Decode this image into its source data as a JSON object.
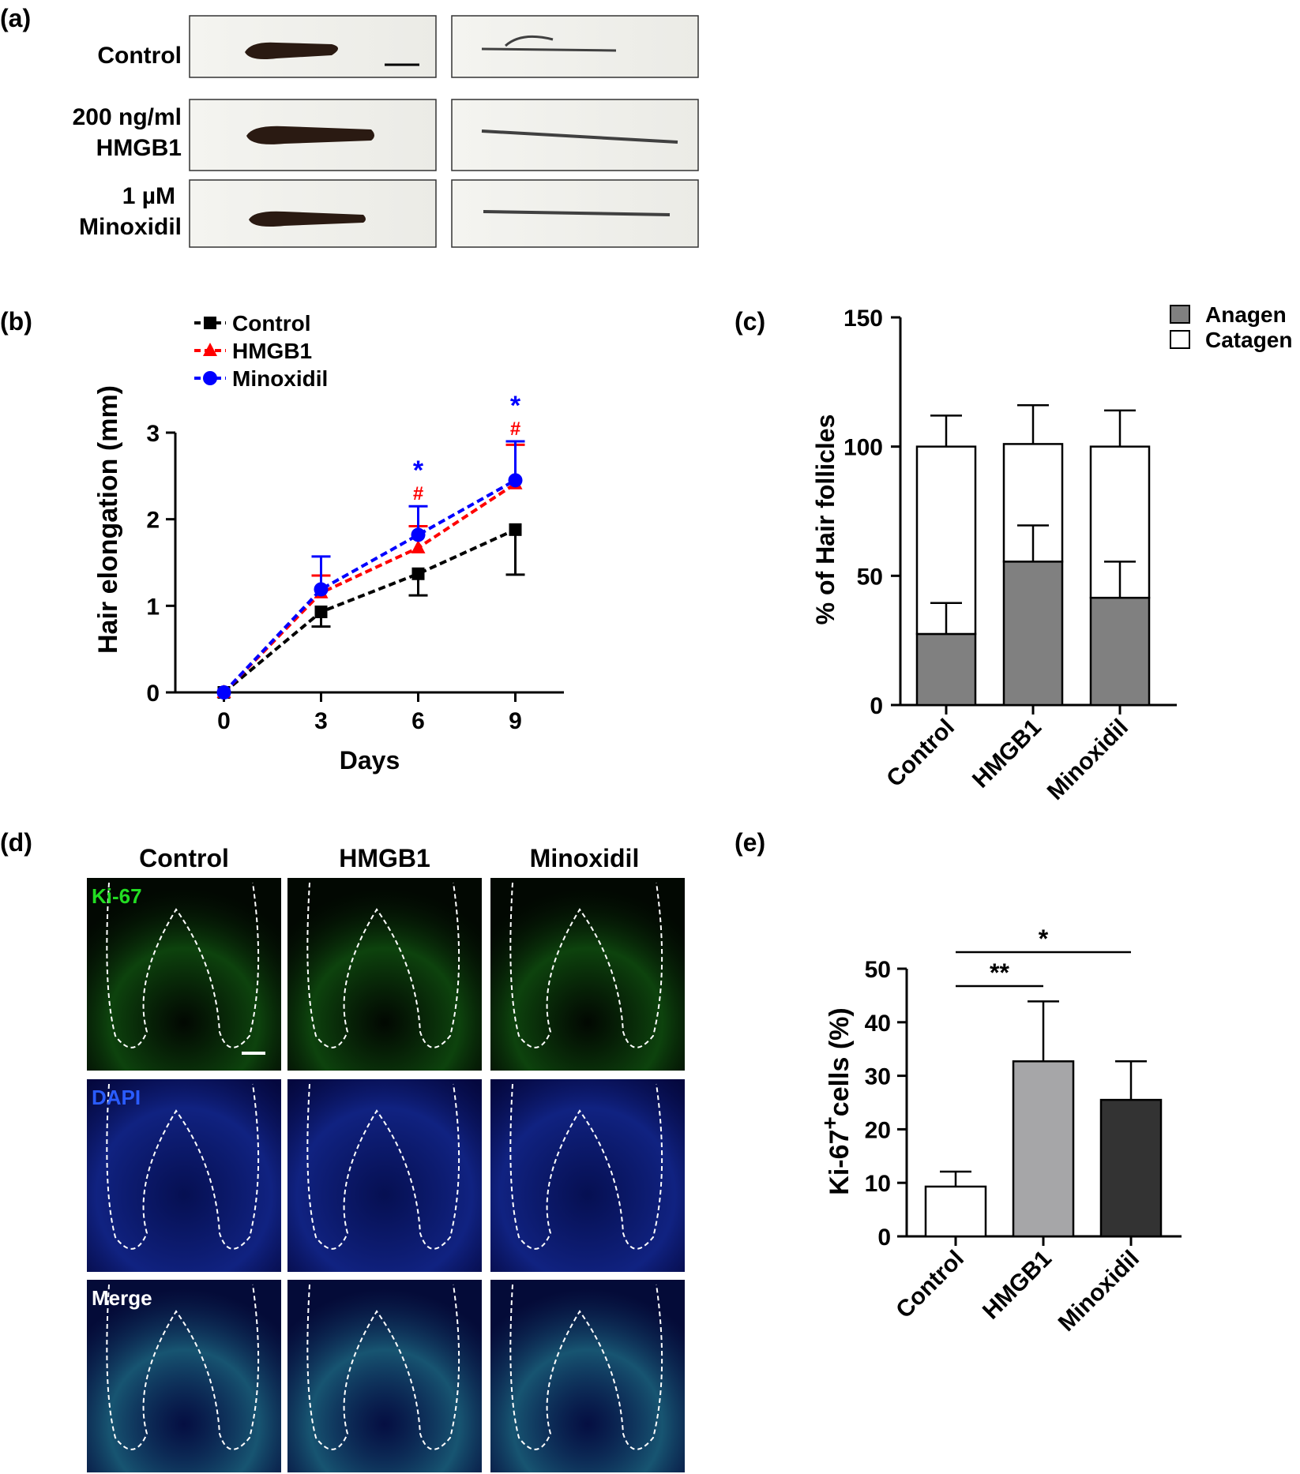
{
  "panels": {
    "a": {
      "label": "(a)",
      "rows": [
        {
          "line1": "Control",
          "line2": ""
        },
        {
          "line1": "200 ng/ml",
          "line2": "HMGB1"
        },
        {
          "line1": "1 µM",
          "line2": "Minoxidil"
        }
      ]
    },
    "b": {
      "label": "(b)"
    },
    "c": {
      "label": "(c)"
    },
    "d": {
      "label": "(d)",
      "columns": [
        "Control",
        "HMGB1",
        "Minoxidil"
      ],
      "stains": [
        {
          "name": "Ki-67",
          "color": "#22dd22"
        },
        {
          "name": "DAPI",
          "color": "#2a5cff"
        },
        {
          "name": "Merge",
          "color": "#ffffff"
        }
      ]
    },
    "e": {
      "label": "(e)"
    }
  },
  "colors": {
    "control": "#000000",
    "hmgb1": "#ff0000",
    "minoxidil": "#0000ff",
    "anagen": "#808080",
    "catagen": "#ffffff",
    "ki67_control": "#ffffff",
    "ki67_hmgb1": "#a6a6a8",
    "ki67_minoxidil": "#333333"
  },
  "chart_data": [
    {
      "id": "b",
      "type": "line",
      "xlabel": "Days",
      "ylabel": "Hair elongation (mm)",
      "x": [
        0,
        3,
        6,
        9
      ],
      "xticks": [
        "0",
        "3",
        "6",
        "9"
      ],
      "yticks": [
        "0",
        "1",
        "2",
        "3"
      ],
      "xlim": [
        -1.5,
        10.5
      ],
      "ylim": [
        0,
        3
      ],
      "legend_position": "top-left",
      "series": [
        {
          "name": "Control",
          "values": [
            0,
            0.93,
            1.37,
            1.88
          ],
          "errors": [
            0,
            0.17,
            0.25,
            0.52
          ],
          "marker": "square"
        },
        {
          "name": "HMGB1",
          "values": [
            0,
            1.15,
            1.67,
            2.41
          ],
          "errors": [
            0,
            0.2,
            0.25,
            0.45
          ],
          "marker": "triangle"
        },
        {
          "name": "Minoxidil",
          "values": [
            0,
            1.19,
            1.82,
            2.45
          ],
          "errors": [
            0,
            0.38,
            0.33,
            0.45
          ],
          "marker": "circle"
        }
      ],
      "annotations": [
        {
          "text": "*",
          "x": 6,
          "series": "Minoxidil"
        },
        {
          "text": "#",
          "x": 6,
          "series": "HMGB1"
        },
        {
          "text": "*",
          "x": 9,
          "series": "Minoxidil"
        },
        {
          "text": "#",
          "x": 9,
          "series": "HMGB1"
        }
      ]
    },
    {
      "id": "c",
      "type": "bar",
      "stacked": true,
      "ylabel": "% of Hair follicles",
      "categories": [
        "Control",
        "HMGB1",
        "Minoxidil"
      ],
      "yticks": [
        "0",
        "50",
        "100",
        "150"
      ],
      "ylim": [
        0,
        150
      ],
      "legend_position": "top-right",
      "series": [
        {
          "name": "Anagen",
          "values": [
            27.5,
            55.5,
            41.5
          ],
          "errors": [
            12,
            14,
            14
          ]
        },
        {
          "name": "Catagen",
          "values": [
            72.5,
            45.5,
            58.5
          ],
          "errors": [
            12,
            15,
            14
          ]
        }
      ]
    },
    {
      "id": "e",
      "type": "bar",
      "ylabel_main": "Ki-67",
      "ylabel_sup": "+",
      "ylabel_rest": "cells (%)",
      "categories": [
        "Control",
        "HMGB1",
        "Minoxidil"
      ],
      "values": [
        9.3,
        32.7,
        25.5
      ],
      "errors": [
        2.8,
        11.2,
        7.2
      ],
      "yticks": [
        "0",
        "10",
        "20",
        "30",
        "40",
        "50"
      ],
      "ylim": [
        0,
        50
      ],
      "significance": [
        {
          "from": "Control",
          "to": "HMGB1",
          "text": "**"
        },
        {
          "from": "Control",
          "to": "Minoxidil",
          "text": "*"
        }
      ]
    }
  ]
}
